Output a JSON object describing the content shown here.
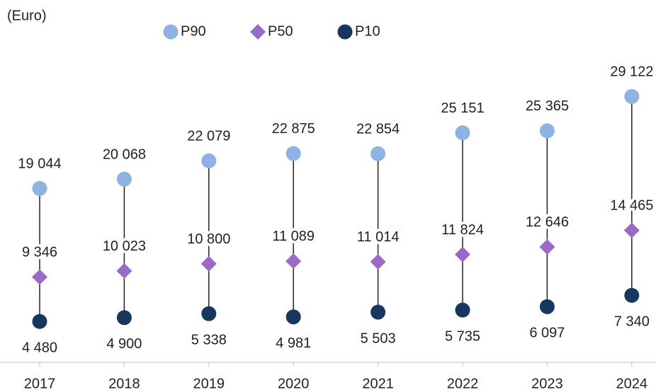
{
  "chart_data": {
    "type": "dot-range",
    "subtitle": "(Euro)",
    "categories": [
      "2017",
      "2018",
      "2019",
      "2020",
      "2021",
      "2022",
      "2023",
      "2024"
    ],
    "series": [
      {
        "name": "P90",
        "color": "#8db3e2",
        "marker": "circle",
        "values": [
          19044,
          20068,
          22079,
          22875,
          22854,
          25151,
          25365,
          29122
        ],
        "value_labels": [
          "19 044",
          "20 068",
          "22 079",
          "22 875",
          "22 854",
          "25 151",
          "25 365",
          "29 122"
        ]
      },
      {
        "name": "P50",
        "color": "#9b6ac9",
        "marker": "diamond",
        "values": [
          9346,
          10023,
          10800,
          11089,
          11014,
          11824,
          12646,
          14465
        ],
        "value_labels": [
          "9 346",
          "10 023",
          "10 800",
          "11 089",
          "11 014",
          "11 824",
          "12 646",
          "14 465"
        ]
      },
      {
        "name": "P10",
        "color": "#17375e",
        "marker": "circle",
        "values": [
          4480,
          4900,
          5338,
          4981,
          5503,
          5735,
          6097,
          7340
        ],
        "value_labels": [
          "4 480",
          "4 900",
          "5 338",
          "4 981",
          "5 503",
          "5 735",
          "6 097",
          "7 340"
        ]
      }
    ]
  }
}
